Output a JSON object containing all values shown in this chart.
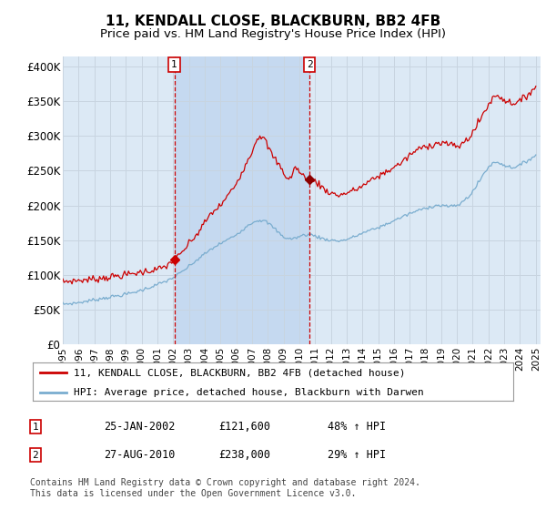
{
  "title": "11, KENDALL CLOSE, BLACKBURN, BB2 4FB",
  "subtitle": "Price paid vs. HM Land Registry's House Price Index (HPI)",
  "title_fontsize": 11,
  "subtitle_fontsize": 9.5,
  "ylabel_ticks": [
    "£0",
    "£50K",
    "£100K",
    "£150K",
    "£200K",
    "£250K",
    "£300K",
    "£350K",
    "£400K"
  ],
  "ytick_values": [
    0,
    50000,
    100000,
    150000,
    200000,
    250000,
    300000,
    350000,
    400000
  ],
  "ylim": [
    0,
    415000
  ],
  "xlim_start": 1995.0,
  "xlim_end": 2025.3,
  "plot_bg_color": "#dce9f5",
  "highlight_color": "#c5d9f0",
  "line_color_red": "#cc0000",
  "line_color_blue": "#7aadcf",
  "legend_label_red": "11, KENDALL CLOSE, BLACKBURN, BB2 4FB (detached house)",
  "legend_label_blue": "HPI: Average price, detached house, Blackburn with Darwen",
  "sale1_date": "25-JAN-2002",
  "sale1_price": "£121,600",
  "sale1_hpi": "48% ↑ HPI",
  "sale1_x": 2002.07,
  "sale1_y": 121600,
  "sale2_date": "27-AUG-2010",
  "sale2_price": "£238,000",
  "sale2_hpi": "29% ↑ HPI",
  "sale2_x": 2010.65,
  "sale2_y": 238000,
  "footnote": "Contains HM Land Registry data © Crown copyright and database right 2024.\nThis data is licensed under the Open Government Licence v3.0."
}
